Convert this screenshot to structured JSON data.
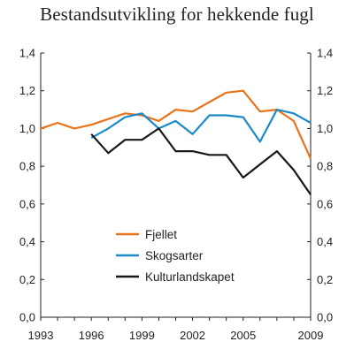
{
  "chart_data": {
    "type": "line",
    "title": "Bestandsutvikling for hekkende fugl",
    "xlabel": "",
    "ylabel": "",
    "xlim": [
      1993,
      2009
    ],
    "ylim": [
      0,
      1.4
    ],
    "x_ticks": [
      "1993",
      "1996",
      "1999",
      "2002",
      "2005",
      "2009"
    ],
    "y_ticks": [
      "0,0",
      "0,2",
      "0,4",
      "0,6",
      "0,8",
      "1,0",
      "1,2",
      "1,4"
    ],
    "y_ticks_right": [
      "0,0",
      "0,2",
      "0,4",
      "0,6",
      "0,8",
      "1,0",
      "1,2",
      "1,4"
    ],
    "grid": false,
    "legend_position": "lower-center",
    "series": [
      {
        "name": "Fjellet",
        "color": "#e8731a",
        "x": [
          1993,
          1994,
          1995,
          1996,
          1997,
          1998,
          1999,
          2000,
          2001,
          2002,
          2003,
          2004,
          2005,
          2006,
          2007,
          2008,
          2009
        ],
        "values": [
          1.0,
          1.03,
          1.0,
          1.02,
          1.05,
          1.08,
          1.07,
          1.04,
          1.1,
          1.09,
          1.14,
          1.19,
          1.2,
          1.09,
          1.1,
          1.04,
          0.84
        ]
      },
      {
        "name": "Skogsarter",
        "color": "#1b8ac8",
        "x": [
          1996,
          1997,
          1998,
          1999,
          2000,
          2001,
          2002,
          2003,
          2004,
          2005,
          2006,
          2007,
          2008,
          2009
        ],
        "values": [
          0.95,
          1.0,
          1.06,
          1.08,
          1.0,
          1.04,
          0.97,
          1.07,
          1.07,
          1.06,
          0.93,
          1.1,
          1.08,
          1.03
        ]
      },
      {
        "name": "Kulturlandskapet",
        "color": "#1a1718",
        "x": [
          1996,
          1997,
          1998,
          1999,
          2000,
          2001,
          2002,
          2003,
          2004,
          2005,
          2006,
          2007,
          2008,
          2009
        ],
        "values": [
          0.97,
          0.87,
          0.94,
          0.94,
          1.0,
          0.88,
          0.88,
          0.86,
          0.86,
          0.74,
          0.81,
          0.88,
          0.78,
          0.65
        ]
      }
    ]
  }
}
